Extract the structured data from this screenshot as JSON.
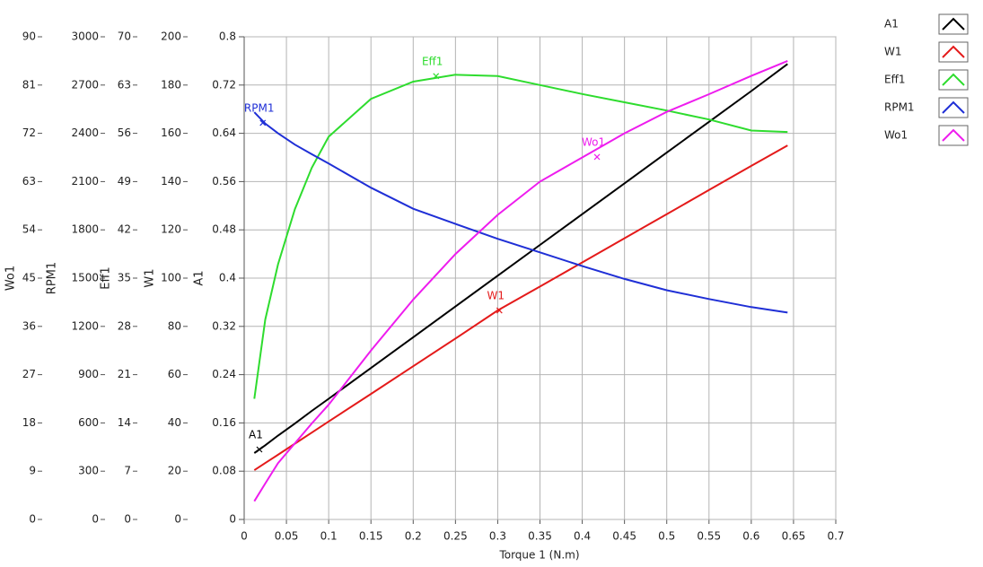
{
  "chart_data": {
    "type": "line",
    "x_label": "Torque 1 (N.m)",
    "xlim": [
      0,
      0.7
    ],
    "xticks": [
      0,
      0.05,
      0.1,
      0.15,
      0.2,
      0.25,
      0.3,
      0.35,
      0.4,
      0.45,
      0.5,
      0.55,
      0.6,
      0.65,
      0.7
    ],
    "grid": true,
    "legend": "right",
    "y_axes": [
      {
        "label": "A1",
        "ylim": [
          0,
          0.8
        ],
        "yticks": [
          0,
          0.08,
          0.16,
          0.24,
          0.32,
          0.4,
          0.48,
          0.56,
          0.64,
          0.72,
          0.8
        ]
      },
      {
        "label": "W1",
        "ylim": [
          0,
          200
        ],
        "yticks": [
          0,
          20,
          40,
          60,
          80,
          100,
          120,
          140,
          160,
          180,
          200
        ]
      },
      {
        "label": "Eff1",
        "ylim": [
          0,
          70
        ],
        "yticks": [
          0,
          7,
          14,
          21,
          28,
          35,
          42,
          49,
          56,
          63,
          70
        ]
      },
      {
        "label": "RPM1",
        "ylim": [
          0,
          3000
        ],
        "yticks": [
          0,
          300,
          600,
          900,
          1200,
          1500,
          1800,
          2100,
          2400,
          2700,
          3000
        ]
      },
      {
        "label": "Wo1",
        "ylim": [
          0,
          90
        ],
        "yticks": [
          0,
          9,
          18,
          27,
          36,
          45,
          54,
          63,
          72,
          81,
          90
        ]
      }
    ],
    "x": [
      0.012,
      0.025,
      0.04,
      0.06,
      0.08,
      0.1,
      0.15,
      0.2,
      0.25,
      0.3,
      0.35,
      0.4,
      0.45,
      0.5,
      0.55,
      0.6,
      0.643
    ],
    "series": [
      {
        "name": "A1",
        "color": "#000000",
        "axis": 0,
        "values": [
          0.11,
          0.123,
          0.139,
          0.159,
          0.18,
          0.2,
          0.251,
          0.302,
          0.353,
          0.404,
          0.455,
          0.506,
          0.557,
          0.608,
          0.659,
          0.71,
          0.755
        ]
      },
      {
        "name": "W1",
        "color": "#e41a1a",
        "axis": 1,
        "values": [
          20.4,
          23.4,
          26.8,
          31.4,
          36,
          40.6,
          52,
          63.5,
          75,
          86.6,
          96.5,
          106.5,
          116.5,
          126.5,
          136.5,
          146.5,
          155
        ]
      },
      {
        "name": "Eff1",
        "color": "#2edc2e",
        "axis": 2,
        "values": [
          17.5,
          29,
          37,
          45,
          51,
          55.5,
          61,
          63.5,
          64.5,
          64.3,
          63,
          61.7,
          60.5,
          59.3,
          58,
          56.4,
          56.2
        ]
      },
      {
        "name": "RPM1",
        "color": "#1f2fd6",
        "axis": 3,
        "values": [
          2531,
          2460,
          2400,
          2330,
          2270,
          2212,
          2062,
          1931,
          1837,
          1744,
          1660,
          1575,
          1495,
          1425,
          1370,
          1320,
          1286
        ]
      },
      {
        "name": "Wo1",
        "color": "#ee1cee",
        "axis": 4,
        "values": [
          3.4,
          6.7,
          10.5,
          14.2,
          17.9,
          21.4,
          31.5,
          41,
          49.5,
          56.8,
          63,
          67.5,
          72,
          76,
          79.3,
          82.7,
          85.5
        ]
      }
    ],
    "annotations": [
      {
        "text": "A1",
        "x": 0.018,
        "y": 0.116,
        "axis": 0
      },
      {
        "text": "RPM1",
        "x": 0.022,
        "y": 2465,
        "axis": 3
      },
      {
        "text": "Eff1",
        "x": 0.227,
        "y": 64.3,
        "axis": 2
      },
      {
        "text": "W1",
        "x": 0.302,
        "y": 86.6,
        "axis": 1
      },
      {
        "text": "Wo1",
        "x": 0.4175,
        "y": 67.6,
        "axis": 4
      }
    ]
  }
}
